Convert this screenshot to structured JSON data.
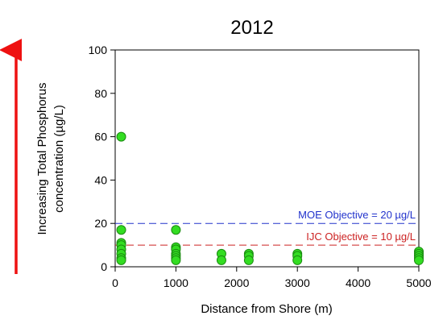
{
  "chart_data": {
    "type": "scatter",
    "title": "2012",
    "xlabel": "Distance from Shore (m)",
    "ylabel_line1": "Increasing Total Phosphorus",
    "ylabel_line2": "concentration (µg/L)",
    "xlim": [
      0,
      5000
    ],
    "ylim": [
      0,
      100
    ],
    "xticks": [
      0,
      1000,
      2000,
      3000,
      4000,
      5000
    ],
    "yticks": [
      0,
      20,
      40,
      60,
      80,
      100
    ],
    "grid": false,
    "marker_color": "#33dd22",
    "marker_edge": "#1a8a10",
    "points": [
      {
        "x": 100,
        "y": 60
      },
      {
        "x": 100,
        "y": 17
      },
      {
        "x": 100,
        "y": 11
      },
      {
        "x": 100,
        "y": 10
      },
      {
        "x": 100,
        "y": 8
      },
      {
        "x": 100,
        "y": 6
      },
      {
        "x": 100,
        "y": 4
      },
      {
        "x": 100,
        "y": 3
      },
      {
        "x": 1000,
        "y": 17
      },
      {
        "x": 1000,
        "y": 9
      },
      {
        "x": 1000,
        "y": 8
      },
      {
        "x": 1000,
        "y": 6
      },
      {
        "x": 1000,
        "y": 5
      },
      {
        "x": 1000,
        "y": 4
      },
      {
        "x": 1000,
        "y": 3
      },
      {
        "x": 1750,
        "y": 6
      },
      {
        "x": 1750,
        "y": 3
      },
      {
        "x": 2200,
        "y": 6
      },
      {
        "x": 2200,
        "y": 5
      },
      {
        "x": 2200,
        "y": 3
      },
      {
        "x": 3000,
        "y": 6
      },
      {
        "x": 3000,
        "y": 5
      },
      {
        "x": 3000,
        "y": 3
      },
      {
        "x": 5000,
        "y": 7
      },
      {
        "x": 5000,
        "y": 6
      },
      {
        "x": 5000,
        "y": 5
      },
      {
        "x": 5000,
        "y": 4
      },
      {
        "x": 5000,
        "y": 3
      }
    ],
    "reference_lines": [
      {
        "y": 20,
        "label": "MOE Objective = 20 µg/L",
        "color": "#2233cc"
      },
      {
        "y": 10,
        "label": "IJC Objective = 10 µg/L",
        "color": "#cc2222"
      }
    ],
    "arrow_color": "#ee1111"
  }
}
